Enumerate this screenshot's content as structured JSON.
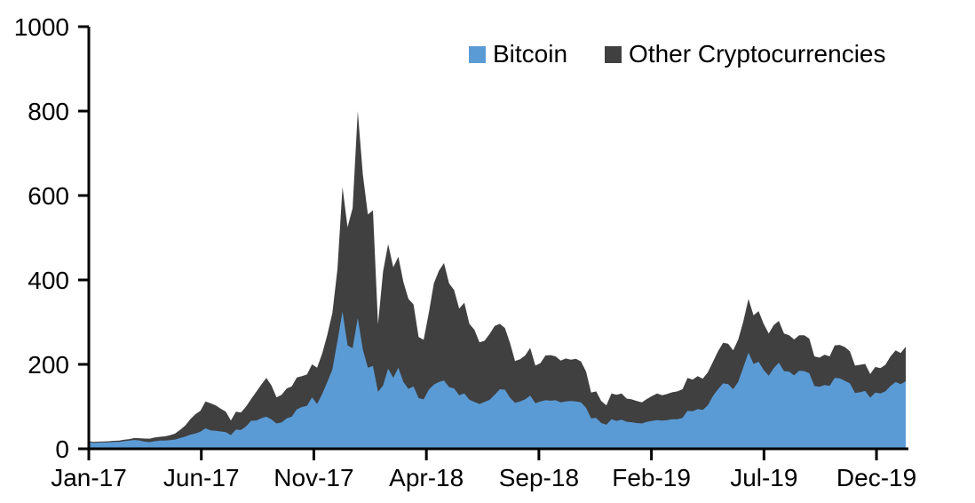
{
  "legend": {
    "items": [
      {
        "label": "Bitcoin",
        "color": "#5B9BD5"
      },
      {
        "label": "Other Cryptocurrencies",
        "color": "#404040"
      }
    ]
  },
  "chart_data": {
    "type": "area",
    "stacked": true,
    "title": "",
    "xlabel": "",
    "ylabel": "",
    "grid": false,
    "legend_position": "top",
    "axis_color": "#000000",
    "ylim": [
      0,
      1000
    ],
    "y_ticks": [
      0,
      200,
      400,
      600,
      800,
      1000
    ],
    "x_tick_labels": [
      "Jan-17",
      "Jun-17",
      "Nov-17",
      "Apr-18",
      "Sep-18",
      "Feb-19",
      "Jul-19",
      "Dec-19"
    ],
    "x_tick_months": [
      0,
      5,
      10,
      15,
      20,
      25,
      30,
      35
    ],
    "x_axis_months_span": 36.3,
    "resolution": "weekly",
    "series": [
      {
        "name": "Bitcoin",
        "color": "#5B9BD5",
        "values": [
          15.5,
          13.9,
          14.9,
          14.9,
          15.4,
          16.3,
          16.3,
          18.2,
          19.3,
          20.9,
          19.7,
          16.8,
          15.8,
          17.8,
          19.5,
          19.4,
          20.5,
          22,
          25.5,
          29,
          33.5,
          36,
          40.5,
          48.5,
          43.5,
          42.5,
          41,
          39.5,
          32.5,
          45.5,
          44.5,
          53,
          66.5,
          67,
          72.5,
          76,
          69.5,
          60,
          62.5,
          72,
          76.5,
          93.5,
          99,
          102,
          122,
          106,
          130,
          158,
          188,
          255,
          325,
          245,
          238,
          310,
          235,
          192,
          196,
          135,
          150,
          190,
          168,
          192,
          158,
          142,
          148,
          120,
          117,
          140,
          152,
          158,
          162,
          146,
          143,
          127,
          131,
          116,
          111,
          106,
          111,
          116,
          128,
          141,
          140,
          121,
          109,
          112,
          117,
          126,
          108,
          112,
          115,
          114,
          115,
          110,
          112,
          113,
          112,
          110,
          97,
          72,
          73,
          61,
          57,
          70,
          66,
          69,
          64,
          63,
          61,
          60,
          64,
          66,
          68,
          67,
          68,
          70,
          70,
          73,
          90,
          89,
          94,
          92,
          103,
          125,
          141,
          155,
          153,
          141,
          159,
          193,
          228,
          201,
          206,
          187,
          173,
          191,
          204,
          184,
          183,
          174,
          185,
          184,
          179,
          149,
          147,
          151,
          149,
          168,
          167,
          161,
          155,
          132,
          134,
          137,
          121,
          133,
          131,
          136,
          149,
          158,
          153,
          160
        ]
      },
      {
        "name": "Other Cryptocurrencies",
        "color": "#404040",
        "values": [
          2.2,
          2.3,
          2.2,
          2.4,
          2.5,
          2.6,
          3,
          3.3,
          3.7,
          4.5,
          5.3,
          7.4,
          8.2,
          9.2,
          9,
          10.1,
          11.5,
          14,
          19.5,
          26,
          36.5,
          46,
          49.5,
          63.5,
          64.5,
          60.5,
          54,
          48.5,
          34.5,
          42.5,
          41.5,
          47,
          51.5,
          68,
          79.5,
          92,
          80.5,
          62,
          65.5,
          71,
          71.5,
          75.5,
          73,
          74,
          78,
          86,
          96,
          112,
          134,
          170,
          295,
          280,
          332,
          490,
          415,
          363,
          369,
          160,
          270,
          295,
          262,
          263,
          237,
          213,
          194,
          145,
          141,
          182,
          240,
          264,
          278,
          246,
          233,
          205,
          215,
          180,
          171,
          146,
          145,
          156,
          163,
          155,
          146,
          130,
          99,
          100,
          104,
          113,
          89,
          91,
          106,
          108,
          104,
          99,
          102,
          98,
          101,
          97,
          86,
          61,
          63,
          52,
          46,
          61,
          62,
          62,
          55,
          54,
          52,
          50,
          54,
          59,
          63,
          60,
          62,
          64,
          66,
          68,
          78,
          75,
          78,
          74,
          78,
          81,
          90,
          96,
          96,
          92,
          100,
          109,
          127,
          115,
          120,
          109,
          100,
          102,
          99,
          89,
          86,
          85,
          84,
          85,
          82,
          70,
          69,
          72,
          70,
          77,
          79,
          80,
          76,
          65,
          65,
          64,
          56,
          61,
          60,
          63,
          70,
          75,
          74,
          82
        ]
      }
    ]
  }
}
